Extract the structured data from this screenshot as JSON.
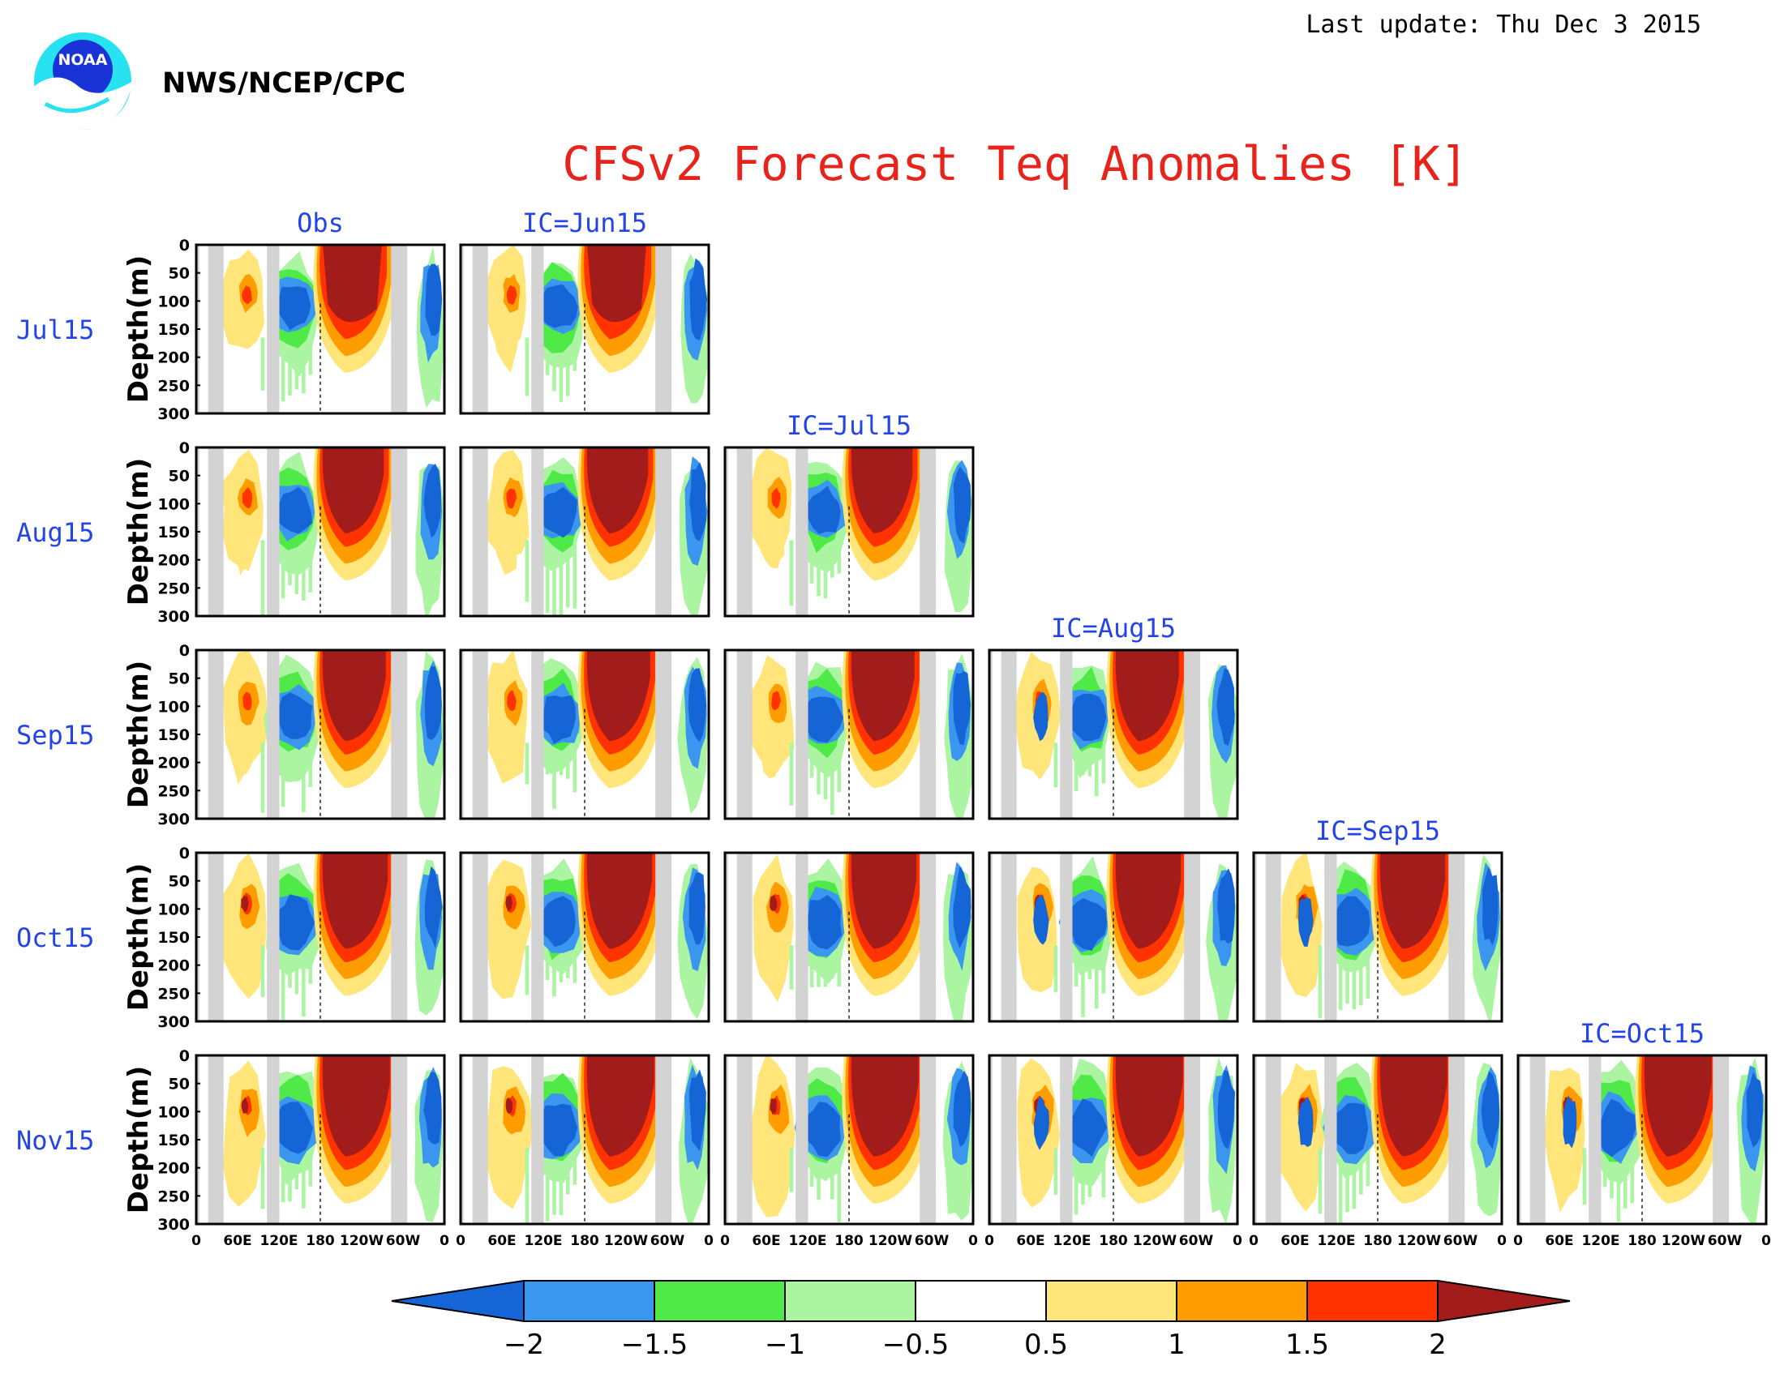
{
  "header": {
    "agency": "NWS/NCEP/CPC",
    "last_update": "Last update: Thu Dec 3 2015",
    "logo_text": "NOAA"
  },
  "colors": {
    "title": "#e8231c",
    "panel_label": "#2444e6",
    "below_m2": "#1565d6",
    "m2_m15": "#3b96f0",
    "m15_m1": "#50ea48",
    "m1_m05": "#abf5a2",
    "neutral": "#ffffff",
    "p05_p1": "#ffe57a",
    "p1_p15": "#ff9d00",
    "p15_p2": "#ff3200",
    "above_p2": "#a31c1c",
    "land": "#d3d3d3"
  },
  "chart_data": {
    "type": "heatmap",
    "title": "CFSv2 Forecast Teq Anomalies [K]",
    "ylabel": "Depth(m)",
    "xlabel": "",
    "x_ticks": [
      "0",
      "60E",
      "120E",
      "180",
      "120W",
      "60W",
      "0"
    ],
    "y_ticks": [
      "0",
      "50",
      "100",
      "150",
      "200",
      "250",
      "300"
    ],
    "ylim": [
      0,
      300
    ],
    "y_reversed": true,
    "columns": [
      "Obs",
      "IC=Jun15",
      "IC=Jul15",
      "IC=Aug15",
      "IC=Sep15",
      "IC=Oct15"
    ],
    "rows": [
      "Jul15",
      "Aug15",
      "Sep15",
      "Oct15",
      "Nov15"
    ],
    "colorbar": {
      "levels": [
        -2,
        -1.5,
        -1,
        -0.5,
        0.5,
        1,
        1.5,
        2
      ],
      "labels": [
        "−2",
        "−1.5",
        "−1",
        "−0.5",
        "0.5",
        "1",
        "1.5",
        "2"
      ]
    },
    "panels": [
      {
        "row": 0,
        "col": 0
      },
      {
        "row": 0,
        "col": 1
      },
      {
        "row": 1,
        "col": 0
      },
      {
        "row": 1,
        "col": 1
      },
      {
        "row": 1,
        "col": 2
      },
      {
        "row": 2,
        "col": 0
      },
      {
        "row": 2,
        "col": 1
      },
      {
        "row": 2,
        "col": 2
      },
      {
        "row": 2,
        "col": 3
      },
      {
        "row": 3,
        "col": 0
      },
      {
        "row": 3,
        "col": 1
      },
      {
        "row": 3,
        "col": 2
      },
      {
        "row": 3,
        "col": 3
      },
      {
        "row": 3,
        "col": 4
      },
      {
        "row": 4,
        "col": 0
      },
      {
        "row": 4,
        "col": 1
      },
      {
        "row": 4,
        "col": 2
      },
      {
        "row": 4,
        "col": 3
      },
      {
        "row": 4,
        "col": 4
      },
      {
        "row": 4,
        "col": 5
      }
    ]
  }
}
